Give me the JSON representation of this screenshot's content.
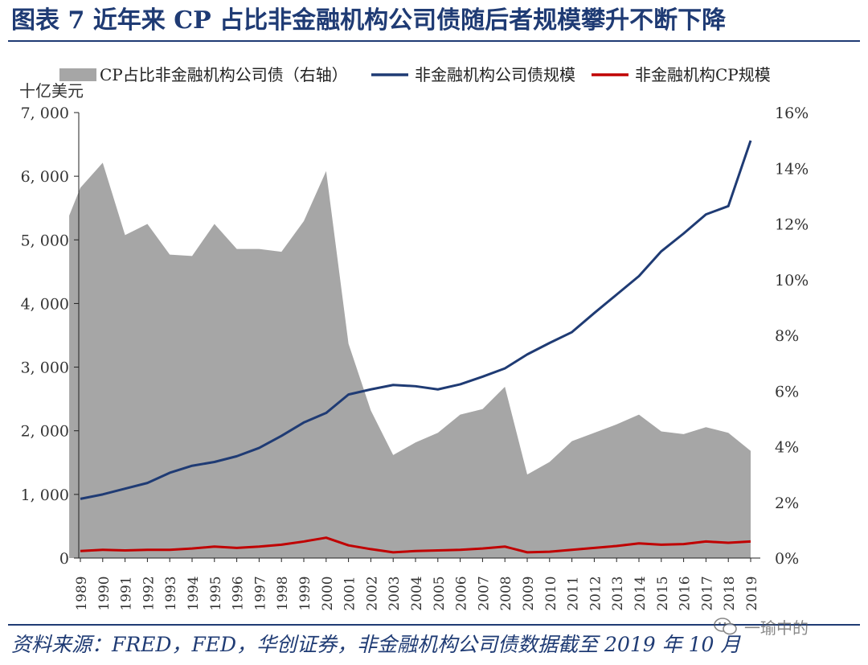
{
  "figure": {
    "title": "图表 7   近年来 CP 占比非金融机构公司债随后者规模攀升不断下降",
    "source": "资料来源：FRED，FED，华创证券，非金融机构公司债数据截至 2019 年 10 月",
    "watermark": "一瑜中的"
  },
  "colors": {
    "area": "#a6a6a6",
    "navy": "#1f3b74",
    "red": "#c00000",
    "axis": "#222222"
  },
  "chart_data": {
    "type": "area+line",
    "title": "",
    "ylabel_left": "十亿美元",
    "ylim_left": [
      0,
      7000
    ],
    "yticks_left": [
      "0",
      "1, 000",
      "2, 000",
      "3, 000",
      "4, 000",
      "5, 000",
      "6, 000",
      "7, 000"
    ],
    "ylim_right": [
      0,
      16
    ],
    "yticks_right": [
      "0%",
      "2%",
      "4%",
      "6%",
      "8%",
      "10%",
      "12%",
      "14%",
      "16%"
    ],
    "categories": [
      "1989",
      "1990",
      "1991",
      "1992",
      "1993",
      "1994",
      "1995",
      "1996",
      "1997",
      "1998",
      "1999",
      "2000",
      "2001",
      "2002",
      "2003",
      "2004",
      "2005",
      "2006",
      "2007",
      "2008",
      "2009",
      "2010",
      "2011",
      "2012",
      "2013",
      "2014",
      "2015",
      "2016",
      "2017",
      "2018",
      "2019"
    ],
    "legend": [
      {
        "label": "CP占比非金融机构公司债（右轴）",
        "kind": "area"
      },
      {
        "label": "非金融机构公司债规模",
        "kind": "line-navy"
      },
      {
        "label": "非金融机构CP规模",
        "kind": "line-red"
      }
    ],
    "series": [
      {
        "name": "CP占比非金融机构公司债（右轴）",
        "axis": "right",
        "x_start": 1988.5,
        "x_end": 2019,
        "start_value": 12.3,
        "values": [
          13.3,
          14.2,
          11.6,
          12.0,
          10.9,
          10.85,
          12.0,
          11.1,
          11.1,
          11.0,
          12.1,
          13.9,
          7.7,
          5.3,
          3.7,
          4.15,
          4.5,
          5.15,
          5.35,
          6.15,
          3.0,
          3.45,
          4.2,
          4.5,
          4.8,
          5.15,
          4.55,
          4.45,
          4.7,
          4.5,
          3.85
        ]
      },
      {
        "name": "非金融机构公司债规模",
        "axis": "left",
        "values": [
          930,
          1000,
          1090,
          1180,
          1340,
          1450,
          1510,
          1600,
          1730,
          1920,
          2130,
          2280,
          2570,
          2650,
          2720,
          2700,
          2650,
          2730,
          2850,
          2980,
          3200,
          3380,
          3550,
          3850,
          4140,
          4430,
          4820,
          5100,
          5400,
          5530,
          6560
        ]
      },
      {
        "name": "非金融机构CP规模",
        "axis": "left",
        "values": [
          110,
          130,
          120,
          130,
          130,
          150,
          180,
          160,
          180,
          210,
          260,
          320,
          200,
          140,
          90,
          110,
          120,
          130,
          150,
          180,
          90,
          100,
          130,
          160,
          190,
          230,
          210,
          220,
          260,
          240,
          260
        ]
      }
    ]
  }
}
